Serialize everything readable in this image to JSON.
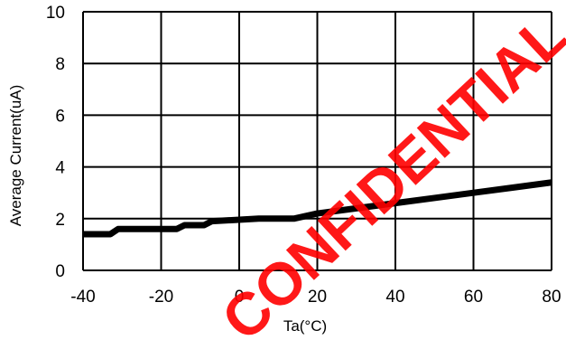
{
  "chart_data": {
    "type": "line",
    "title": "",
    "xlabel": "Ta(°C)",
    "ylabel": "Average Current(uA)",
    "xlim": [
      -40,
      80
    ],
    "ylim": [
      0,
      10
    ],
    "x_ticks": [
      -40,
      -20,
      0,
      20,
      40,
      60,
      80
    ],
    "y_ticks": [
      0,
      2,
      4,
      6,
      8,
      10
    ],
    "x_tick_labels": [
      "-40",
      "-20",
      "0",
      "20",
      "40",
      "60",
      "80"
    ],
    "y_tick_labels": [
      "0",
      "2",
      "4",
      "6",
      "8",
      "10"
    ],
    "grid": true,
    "legend": "none",
    "series": [
      {
        "color": "#000000",
        "x": [
          -40,
          -33,
          -31,
          -16,
          -14,
          -9,
          -7,
          5,
          14,
          20,
          30,
          40,
          50,
          60,
          70,
          80
        ],
        "y": [
          1.4,
          1.4,
          1.6,
          1.6,
          1.75,
          1.75,
          1.9,
          2.0,
          2.0,
          2.2,
          2.4,
          2.6,
          2.8,
          3.0,
          3.2,
          3.4
        ]
      }
    ]
  },
  "watermark": {
    "text": "CONFIDENTIAL",
    "color": "#ff0000"
  }
}
